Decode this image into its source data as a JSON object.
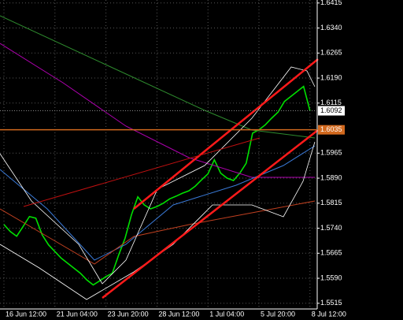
{
  "chart_data": {
    "type": "line",
    "categories": [
      "16 Jun 12:00",
      null,
      null,
      null,
      null,
      null,
      null,
      null,
      "21 Jun 04:00",
      null,
      null,
      null,
      null,
      null,
      null,
      null,
      "23 Jun 20:00",
      null,
      null,
      null,
      null,
      null,
      null,
      null,
      "28 Jun 12:00",
      null,
      null,
      null,
      null,
      null,
      null,
      null,
      "1 Jul 04:00",
      null,
      null,
      null,
      null,
      null,
      null,
      null,
      "5 Jul 20:00",
      null,
      null,
      null,
      null,
      null,
      null,
      null,
      "8 Jul 12:00"
    ],
    "values": [
      1.5751,
      1.573,
      1.5716,
      1.5745,
      1.5775,
      1.577,
      1.572,
      1.569,
      1.567,
      1.565,
      1.5635,
      1.562,
      1.5605,
      1.5585,
      1.557,
      1.5582,
      1.5595,
      1.5605,
      1.566,
      1.571,
      1.578,
      1.5834,
      1.581,
      1.5798,
      1.5805,
      1.5815,
      1.5828,
      1.5836,
      1.5845,
      1.5852,
      1.5866,
      1.5885,
      1.5903,
      1.5945,
      1.5905,
      1.589,
      1.5883,
      1.5905,
      1.5935,
      1.6025,
      1.6035,
      1.605,
      1.607,
      1.6088,
      1.612,
      1.6135,
      1.615,
      1.6165,
      1.6092
    ],
    "color": "#00e000",
    "ylim": [
      1.5498,
      1.6424
    ],
    "yticks": [
      1.6415,
      {
        "value": 1.634,
        "label": "1.6340"
      },
      1.6265,
      {
        "value": 1.619,
        "label": "1.6190"
      },
      1.6115,
      1.5965,
      {
        "value": 1.589,
        "label": "1.5890"
      },
      1.5815,
      {
        "value": 1.574,
        "label": "1.5740"
      },
      1.5665,
      {
        "value": 1.559,
        "label": "1.5590"
      },
      1.5515
    ],
    "grid": true,
    "bid": 1.6092,
    "level": 1.6035
  }
}
